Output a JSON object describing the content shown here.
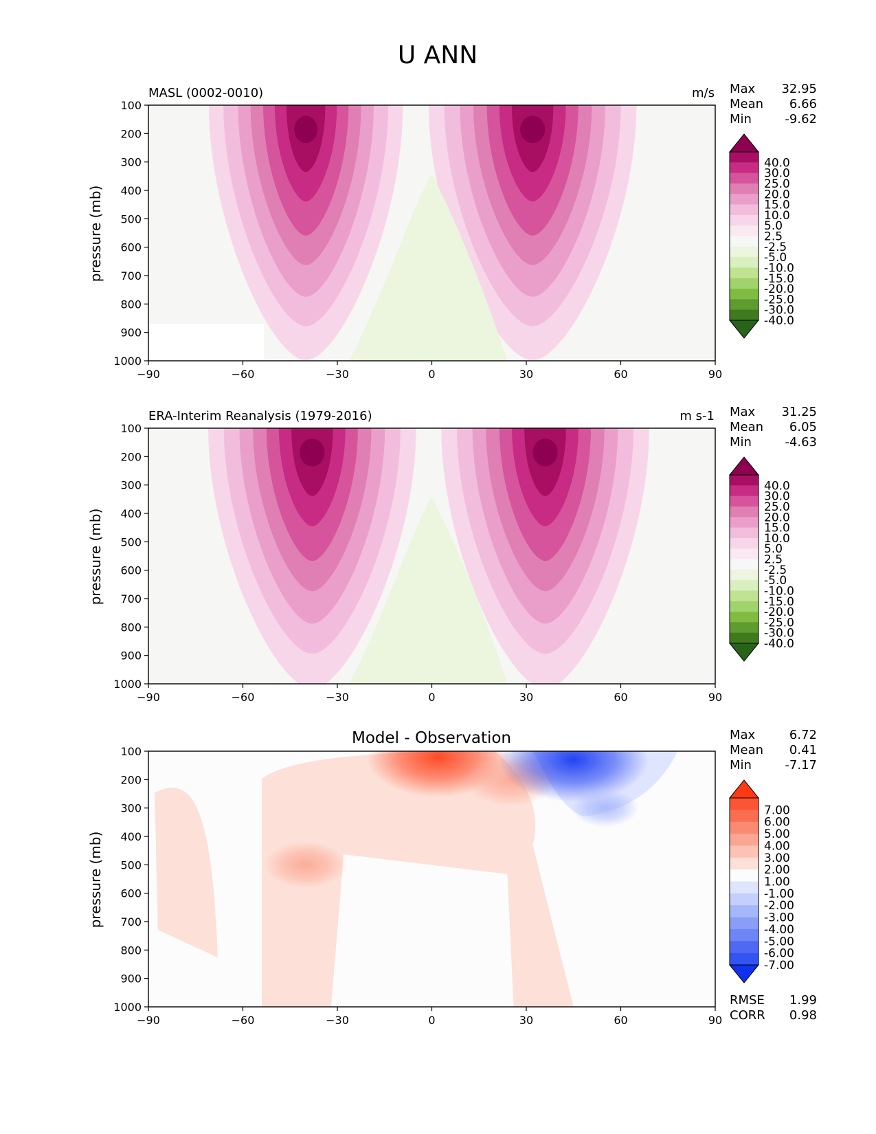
{
  "figure": {
    "title": "U ANN"
  },
  "chart_data": [
    {
      "type": "contour",
      "left_title": "MASL (0002-0010)",
      "center_title": "",
      "units": "m/s",
      "ylabel": "pressure (mb)",
      "xlim": [
        -90,
        90
      ],
      "ylim": [
        1000,
        100
      ],
      "xticks": [
        "−90",
        "−60",
        "−30",
        "0",
        "30",
        "60",
        "90"
      ],
      "yticks": [
        "100",
        "200",
        "300",
        "400",
        "500",
        "600",
        "700",
        "800",
        "900",
        "1000"
      ],
      "stats": [
        {
          "label": "Max",
          "value": "32.95"
        },
        {
          "label": "Mean",
          "value": "6.66"
        },
        {
          "label": "Min",
          "value": "-9.62"
        }
      ],
      "colorbar": {
        "labels": [
          "40.0",
          "30.0",
          "25.0",
          "20.0",
          "15.0",
          "10.0",
          "5.0",
          "2.5",
          "-2.5",
          "-5.0",
          "-10.0",
          "-15.0",
          "-20.0",
          "-25.0",
          "-30.0",
          "-40.0"
        ],
        "colors": [
          "#8e0152",
          "#a80f63",
          "#c72b83",
          "#d6549c",
          "#e07fb3",
          "#ea9fca",
          "#f2bddc",
          "#f8d6e9",
          "#fbe9f2",
          "#f7f7f7",
          "#ecf5dd",
          "#d9efbf",
          "#bfe391",
          "#a1d36c",
          "#7fbc41",
          "#5f9b2e",
          "#3f7a1e",
          "#276419"
        ]
      },
      "jets": [
        {
          "lat": -40,
          "p": 200,
          "max": 32.95,
          "spread_lat": 14,
          "spread_p": 420
        },
        {
          "lat": 32,
          "p": 200,
          "max": 28,
          "spread_lat": 15,
          "spread_p": 420
        }
      ],
      "easterly": {
        "lat": 0,
        "min": -9.62
      }
    },
    {
      "type": "contour",
      "left_title": "ERA-Interim Reanalysis (1979-2016)",
      "center_title": "",
      "units": "m s-1",
      "ylabel": "pressure (mb)",
      "xlim": [
        -90,
        90
      ],
      "ylim": [
        1000,
        100
      ],
      "xticks": [
        "−90",
        "−60",
        "−30",
        "0",
        "30",
        "60",
        "90"
      ],
      "yticks": [
        "100",
        "200",
        "300",
        "400",
        "500",
        "600",
        "700",
        "800",
        "900",
        "1000"
      ],
      "stats": [
        {
          "label": "Max",
          "value": "31.25"
        },
        {
          "label": "Mean",
          "value": "6.05"
        },
        {
          "label": "Min",
          "value": "-4.63"
        }
      ],
      "colorbar": {
        "labels": [
          "40.0",
          "30.0",
          "25.0",
          "20.0",
          "15.0",
          "10.0",
          "5.0",
          "2.5",
          "-2.5",
          "-5.0",
          "-10.0",
          "-15.0",
          "-20.0",
          "-25.0",
          "-30.0",
          "-40.0"
        ],
        "colors": [
          "#8e0152",
          "#a80f63",
          "#c72b83",
          "#d6549c",
          "#e07fb3",
          "#ea9fca",
          "#f2bddc",
          "#f8d6e9",
          "#fbe9f2",
          "#f7f7f7",
          "#ecf5dd",
          "#d9efbf",
          "#bfe391",
          "#a1d36c",
          "#7fbc41",
          "#5f9b2e",
          "#3f7a1e",
          "#276419"
        ]
      },
      "jets": [
        {
          "lat": -38,
          "p": 200,
          "max": 31.25,
          "spread_lat": 15,
          "spread_p": 430
        },
        {
          "lat": 36,
          "p": 200,
          "max": 30,
          "spread_lat": 15,
          "spread_p": 430
        }
      ],
      "easterly": {
        "lat": 0,
        "min": -4.63
      }
    },
    {
      "type": "contour",
      "left_title": "",
      "center_title": "Model - Observation",
      "units": "",
      "ylabel": "pressure (mb)",
      "xlim": [
        -90,
        90
      ],
      "ylim": [
        1000,
        100
      ],
      "xticks": [
        "−90",
        "−60",
        "−30",
        "0",
        "30",
        "60",
        "90"
      ],
      "yticks": [
        "100",
        "200",
        "300",
        "400",
        "500",
        "600",
        "700",
        "800",
        "900",
        "1000"
      ],
      "stats": [
        {
          "label": "Max",
          "value": "6.72"
        },
        {
          "label": "Mean",
          "value": "0.41"
        },
        {
          "label": "Min",
          "value": "-7.17"
        }
      ],
      "extra_stats": [
        {
          "label": "RMSE",
          "value": "1.99"
        },
        {
          "label": "CORR",
          "value": "0.98"
        }
      ],
      "colorbar": {
        "labels": [
          "7.00",
          "6.00",
          "5.00",
          "4.00",
          "3.00",
          "2.00",
          "1.00",
          "-1.00",
          "-2.00",
          "-3.00",
          "-4.00",
          "-5.00",
          "-6.00",
          "-7.00"
        ],
        "colors": [
          "#ff3a12",
          "#fb5535",
          "#f86e4f",
          "#fa8b72",
          "#fba692",
          "#fcc2b3",
          "#fde0d7",
          "#fcfcfc",
          "#dfe5ff",
          "#c4cffd",
          "#a6b6fb",
          "#8a9df8",
          "#6e85f6",
          "#5069f4",
          "#3254f1",
          "#0f31f0"
        ]
      },
      "anomalies": [
        {
          "lat": 2,
          "p": 120,
          "value": 6.72
        },
        {
          "lat": 25,
          "p": 200,
          "value": 3.5
        },
        {
          "lat": -40,
          "p": 500,
          "value": 2.8
        },
        {
          "lat": 45,
          "p": 130,
          "value": -7.17
        },
        {
          "lat": 55,
          "p": 300,
          "value": -1.8
        }
      ]
    }
  ]
}
